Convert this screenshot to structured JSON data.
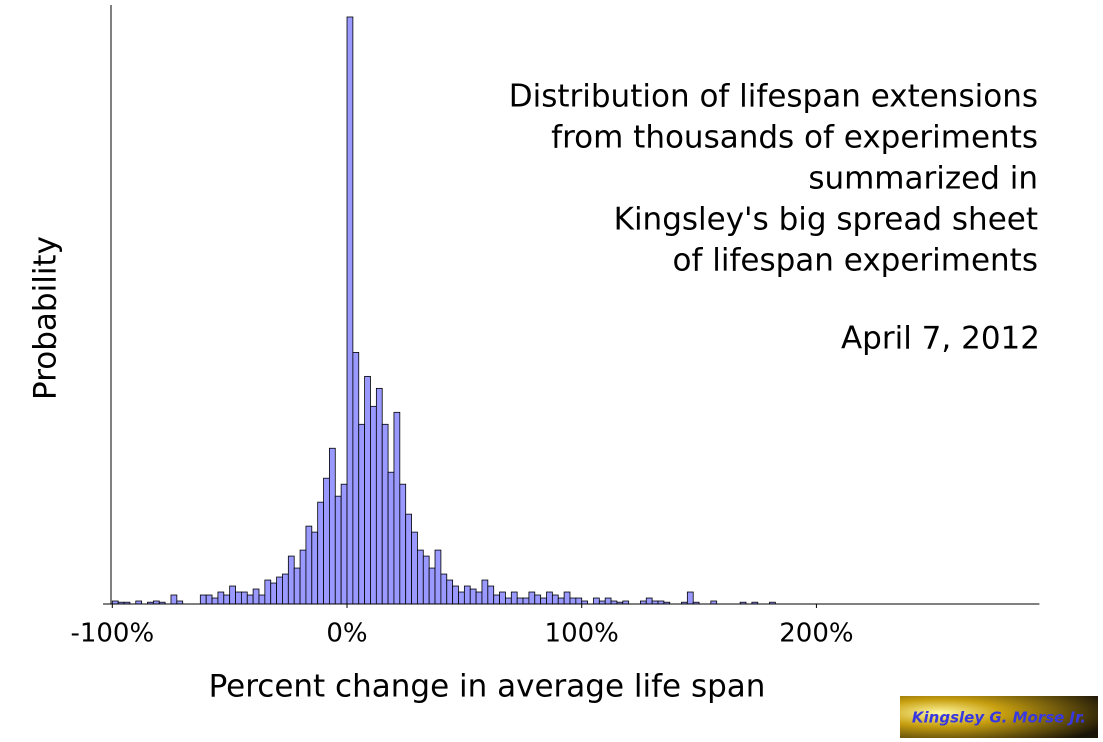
{
  "chart_data": {
    "type": "histogram",
    "title": [
      "Distribution of lifespan extensions",
      "from thousands of experiments",
      "summarized  in",
      "Kingsley's big spread sheet",
      "of lifespan experiments"
    ],
    "subtitle": "April 7, 2012",
    "x_label": "Percent change in average life span",
    "y_label": "Probability",
    "bins": [
      -100,
      -97.5,
      -95,
      -92.5,
      -90,
      -87.5,
      -85,
      -82.5,
      -80,
      -77.5,
      -75,
      -72.5,
      -70,
      -67.5,
      -65,
      -62.5,
      -60,
      -57.5,
      -55,
      -52.5,
      -50,
      -47.5,
      -45,
      -42.5,
      -40,
      -37.5,
      -35,
      -32.5,
      -30,
      -27.5,
      -25,
      -22.5,
      -20,
      -17.5,
      -15,
      -12.5,
      -10,
      -7.5,
      -5,
      -2.5,
      0,
      2.5,
      5,
      7.5,
      10,
      12.5,
      15,
      17.5,
      20,
      22.5,
      25,
      27.5,
      30,
      32.5,
      35,
      37.5,
      40,
      42.5,
      45,
      47.5,
      50,
      52.5,
      55,
      57.5,
      60,
      62.5,
      65,
      67.5,
      70,
      72.5,
      75,
      77.5,
      80,
      82.5,
      85,
      87.5,
      90,
      92.5,
      95,
      97.5,
      100,
      102.5,
      105,
      107.5,
      110,
      112.5,
      115,
      117.5,
      120,
      122.5,
      125,
      127.5,
      130,
      132.5,
      135,
      137.5,
      140,
      142.5,
      145,
      147.5,
      150,
      152.5,
      155,
      157.5,
      160,
      162.5,
      165,
      167.5,
      170,
      172.5,
      175,
      177.5,
      180,
      182.5,
      185
    ],
    "counts": [
      0.5,
      0.3,
      0.3,
      0,
      0.5,
      0,
      0.3,
      0.5,
      0.3,
      0,
      1.5,
      0.5,
      0,
      0,
      0,
      1.5,
      1.5,
      1,
      2,
      1.5,
      3,
      2,
      2,
      1.5,
      2.5,
      1.5,
      4,
      3.5,
      4.5,
      5,
      8,
      6,
      9,
      13,
      12,
      17,
      21,
      26,
      18,
      20,
      98,
      42,
      30,
      38,
      33,
      36,
      30,
      22,
      32,
      20,
      15,
      12,
      9,
      8,
      6,
      9,
      5,
      4,
      3,
      2,
      3,
      2.5,
      2,
      4,
      3,
      1.5,
      2,
      1,
      2,
      1,
      1,
      2,
      1.5,
      1,
      2,
      1.5,
      1,
      2,
      1,
      1,
      0.5,
      0,
      1,
      0.5,
      1,
      0.5,
      0.3,
      0.5,
      0,
      0,
      0.5,
      1,
      0.5,
      0.5,
      0.3,
      0,
      0,
      0.3,
      2,
      0.3,
      0,
      0,
      0.5,
      0,
      0,
      0,
      0,
      0.3,
      0,
      0.3,
      0,
      0,
      0.3,
      0
    ],
    "color": "#9999ff",
    "xlim": [
      -100,
      295
    ],
    "ylim": [
      0,
      100
    ],
    "xticks": [
      {
        "value": -100,
        "label": "-100%"
      },
      {
        "value": 0,
        "label": "0%"
      },
      {
        "value": 100,
        "label": "100%"
      },
      {
        "value": 200,
        "label": "200%"
      }
    ]
  },
  "logo": "Kingsley G. Morse Jr."
}
